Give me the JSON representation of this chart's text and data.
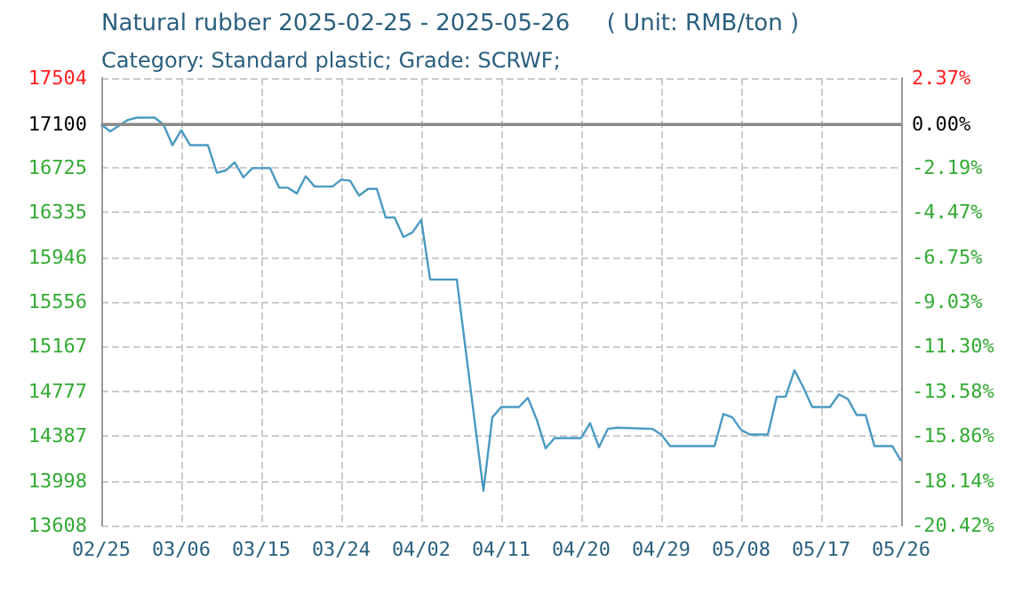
{
  "chart_data": {
    "type": "line",
    "title": "Natural rubber 2025-02-25 - 2025-05-26     ( Unit: RMB/ton )",
    "subtitle": "Category: Standard plastic; Grade: SCRWF;",
    "x": [
      "2025-02-25",
      "2025-02-26",
      "2025-02-28",
      "2025-03-01",
      "2025-03-03",
      "2025-03-04",
      "2025-03-05",
      "2025-03-06",
      "2025-03-07",
      "2025-03-09",
      "2025-03-10",
      "2025-03-11",
      "2025-03-12",
      "2025-03-13",
      "2025-03-14",
      "2025-03-16",
      "2025-03-17",
      "2025-03-18",
      "2025-03-19",
      "2025-03-20",
      "2025-03-21",
      "2025-03-23",
      "2025-03-24",
      "2025-03-25",
      "2025-03-26",
      "2025-03-27",
      "2025-03-28",
      "2025-03-29",
      "2025-03-30",
      "2025-03-31",
      "2025-04-01",
      "2025-04-02",
      "2025-04-03",
      "2025-04-06",
      "2025-04-09",
      "2025-04-10",
      "2025-04-11",
      "2025-04-13",
      "2025-04-14",
      "2025-04-15",
      "2025-04-16",
      "2025-04-17",
      "2025-04-20",
      "2025-04-21",
      "2025-04-22",
      "2025-04-23",
      "2025-04-24",
      "2025-04-28",
      "2025-04-29",
      "2025-04-30",
      "2025-05-05",
      "2025-05-06",
      "2025-05-07",
      "2025-05-08",
      "2025-05-09",
      "2025-05-11",
      "2025-05-12",
      "2025-05-13",
      "2025-05-14",
      "2025-05-15",
      "2025-05-16",
      "2025-05-18",
      "2025-05-19",
      "2025-05-20",
      "2025-05-21",
      "2025-05-22",
      "2025-05-23",
      "2025-05-25",
      "2025-05-26"
    ],
    "series": [
      {
        "color": "#4a9ac2",
        "values": [
          17100,
          17040,
          17140,
          17160,
          17160,
          17100,
          16920,
          17050,
          16920,
          16920,
          16680,
          16700,
          16770,
          16640,
          16720,
          16720,
          16550,
          16550,
          16500,
          16650,
          16560,
          16560,
          16620,
          16610,
          16480,
          16540,
          16540,
          16290,
          16290,
          16120,
          16160,
          16270,
          15750,
          15750,
          13910,
          14550,
          14640,
          14640,
          14720,
          14530,
          14280,
          14370,
          14370,
          14500,
          14290,
          14450,
          14460,
          14450,
          14400,
          14300,
          14300,
          14580,
          14550,
          14440,
          14400,
          14400,
          14730,
          14730,
          14960,
          14810,
          14640,
          14640,
          14750,
          14710,
          14570,
          14570,
          14300,
          14300,
          14170
        ]
      }
    ],
    "xlim": [
      "2025-02-25",
      "2025-05-26"
    ],
    "xticks": [
      {
        "value": "2025-02-25",
        "label": "02/25"
      },
      {
        "value": "2025-03-06",
        "label": "03/06"
      },
      {
        "value": "2025-03-15",
        "label": "03/15"
      },
      {
        "value": "2025-03-24",
        "label": "03/24"
      },
      {
        "value": "2025-04-02",
        "label": "04/02"
      },
      {
        "value": "2025-04-11",
        "label": "04/11"
      },
      {
        "value": "2025-04-20",
        "label": "04/20"
      },
      {
        "value": "2025-04-29",
        "label": "04/29"
      },
      {
        "value": "2025-05-08",
        "label": "05/08"
      },
      {
        "value": "2025-05-17",
        "label": "05/17"
      },
      {
        "value": "2025-05-26",
        "label": "05/26"
      }
    ],
    "ylim": [
      13608,
      17504
    ],
    "yticks": [
      13608,
      13998,
      14387,
      14777,
      15167,
      15556,
      15946,
      16335,
      16725,
      17100,
      17504
    ],
    "y2lim": [
      -20.42,
      2.37
    ],
    "y2ticks": [
      {
        "value": -20.42,
        "label": "-20.42%"
      },
      {
        "value": -18.14,
        "label": "-18.14%"
      },
      {
        "value": -15.86,
        "label": "-15.86%"
      },
      {
        "value": -13.58,
        "label": "-13.58%"
      },
      {
        "value": -11.3,
        "label": "-11.30%"
      },
      {
        "value": -9.03,
        "label": "-9.03%"
      },
      {
        "value": -6.75,
        "label": "-6.75%"
      },
      {
        "value": -4.47,
        "label": "-4.47%"
      },
      {
        "value": -2.19,
        "label": "-2.19%"
      },
      {
        "value": 0,
        "label": "0.00%"
      },
      {
        "value": 2.37,
        "label": "2.37%"
      }
    ],
    "ref_lines": [
      {
        "axis": "y",
        "value": 17100,
        "color": "#888888"
      }
    ],
    "grid": true,
    "marker": "none",
    "line_style": "solid"
  }
}
